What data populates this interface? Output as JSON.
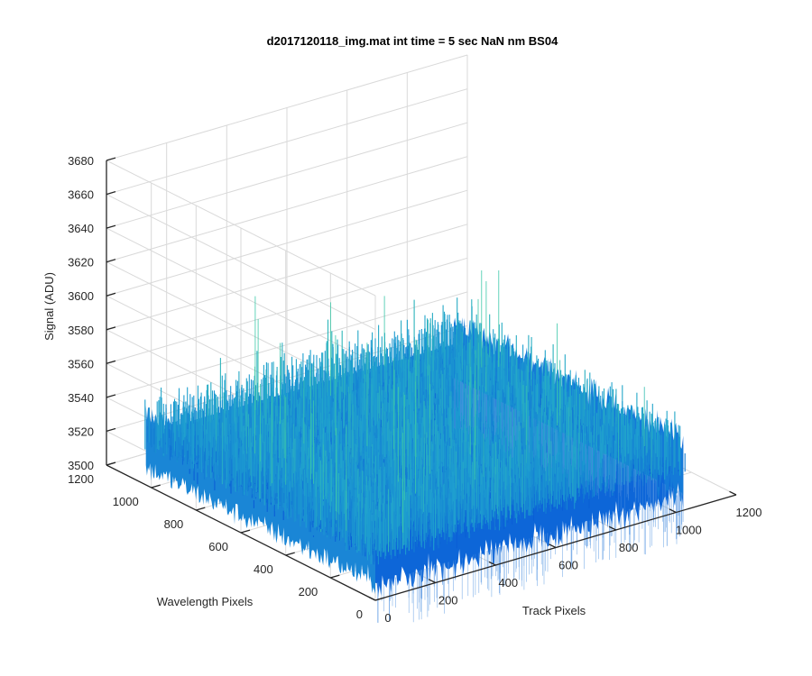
{
  "chart_data": {
    "type": "surface",
    "title": "d2017120118_img.mat int time = 5 sec  NaN nm BS04",
    "xlabel": "Track Pixels",
    "ylabel": "Wavelength Pixels",
    "zlabel": "Signal (ADU)",
    "x_ticks": [
      "0",
      "200",
      "400",
      "600",
      "800",
      "1000",
      "1200"
    ],
    "y_ticks": [
      "0",
      "200",
      "400",
      "600",
      "800",
      "1000",
      "1200"
    ],
    "z_ticks": [
      "3500",
      "3520",
      "3540",
      "3560",
      "3580",
      "3600",
      "3620",
      "3640",
      "3660",
      "3680"
    ],
    "xlim": [
      0,
      1200
    ],
    "ylim": [
      0,
      1200
    ],
    "zlim": [
      3500,
      3680
    ],
    "surface": {
      "x_range": [
        0,
        1024
      ],
      "y_range": [
        0,
        1024
      ],
      "z_mean": 3530,
      "z_min_approx": 3505,
      "z_max_approx": 3630,
      "colormap": "parula"
    },
    "grid": true,
    "view": "3d"
  },
  "colors": {
    "surface_low": "#0a5ed6",
    "surface_mid": "#1e9fd0",
    "surface_high": "#3cc8a8",
    "axis": "#262626",
    "grid": "#d9d9d9"
  }
}
